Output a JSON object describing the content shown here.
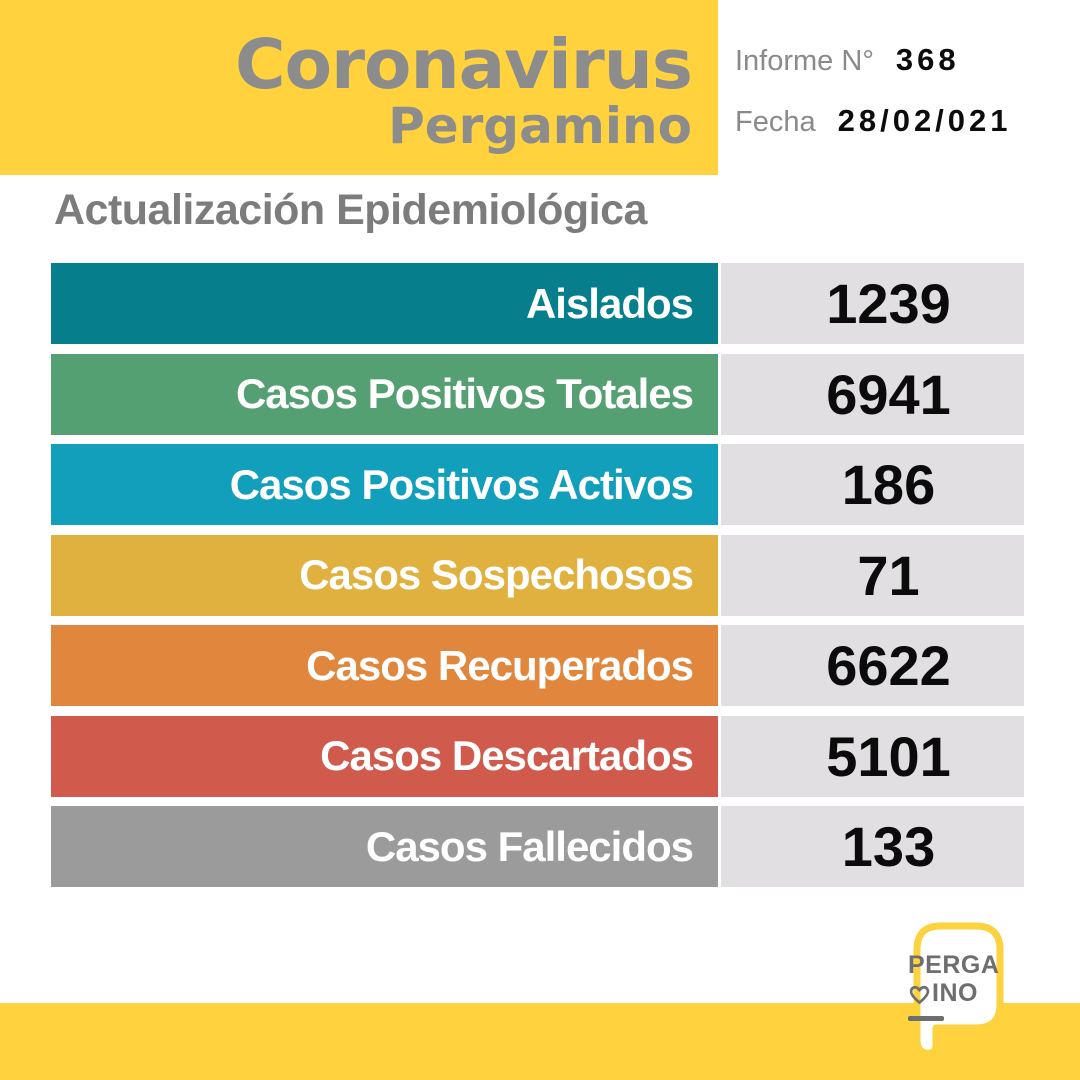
{
  "header": {
    "title_line1": "Coronavirus",
    "title_line2": "Pergamino",
    "report_label": "Informe N°",
    "report_number": "368",
    "date_label": "Fecha",
    "date_value": "28/02/021"
  },
  "chart_data": {
    "type": "table",
    "title": "Actualización Epidemiológica",
    "categories": [
      "Aislados",
      "Casos Positivos Totales",
      "Casos Positivos Activos",
      "Casos Sospechosos",
      "Casos Recuperados",
      "Casos Descartados",
      "Casos Fallecidos"
    ],
    "values": [
      1239,
      6941,
      186,
      71,
      6622,
      5101,
      133
    ],
    "row_colors": [
      "#077E8C",
      "#55A073",
      "#119FBC",
      "#E0B13E",
      "#E0873D",
      "#D05B4C",
      "#9B9B9B"
    ],
    "label_text_color": "#FFFFFF",
    "value_text_color": "#0B0B0B",
    "legend": "none",
    "grid": "off"
  },
  "logo": {
    "line1": "PERGA",
    "line2_suffix": "INO",
    "heart_icon": "heart-outline"
  },
  "colors": {
    "brand_yellow": "#FFD23E",
    "title_gray": "#8C8C8C",
    "subtitle_gray": "#7C7C7C",
    "value_bg": "#E1DFE2",
    "logo_gray": "#6E6E6E"
  }
}
